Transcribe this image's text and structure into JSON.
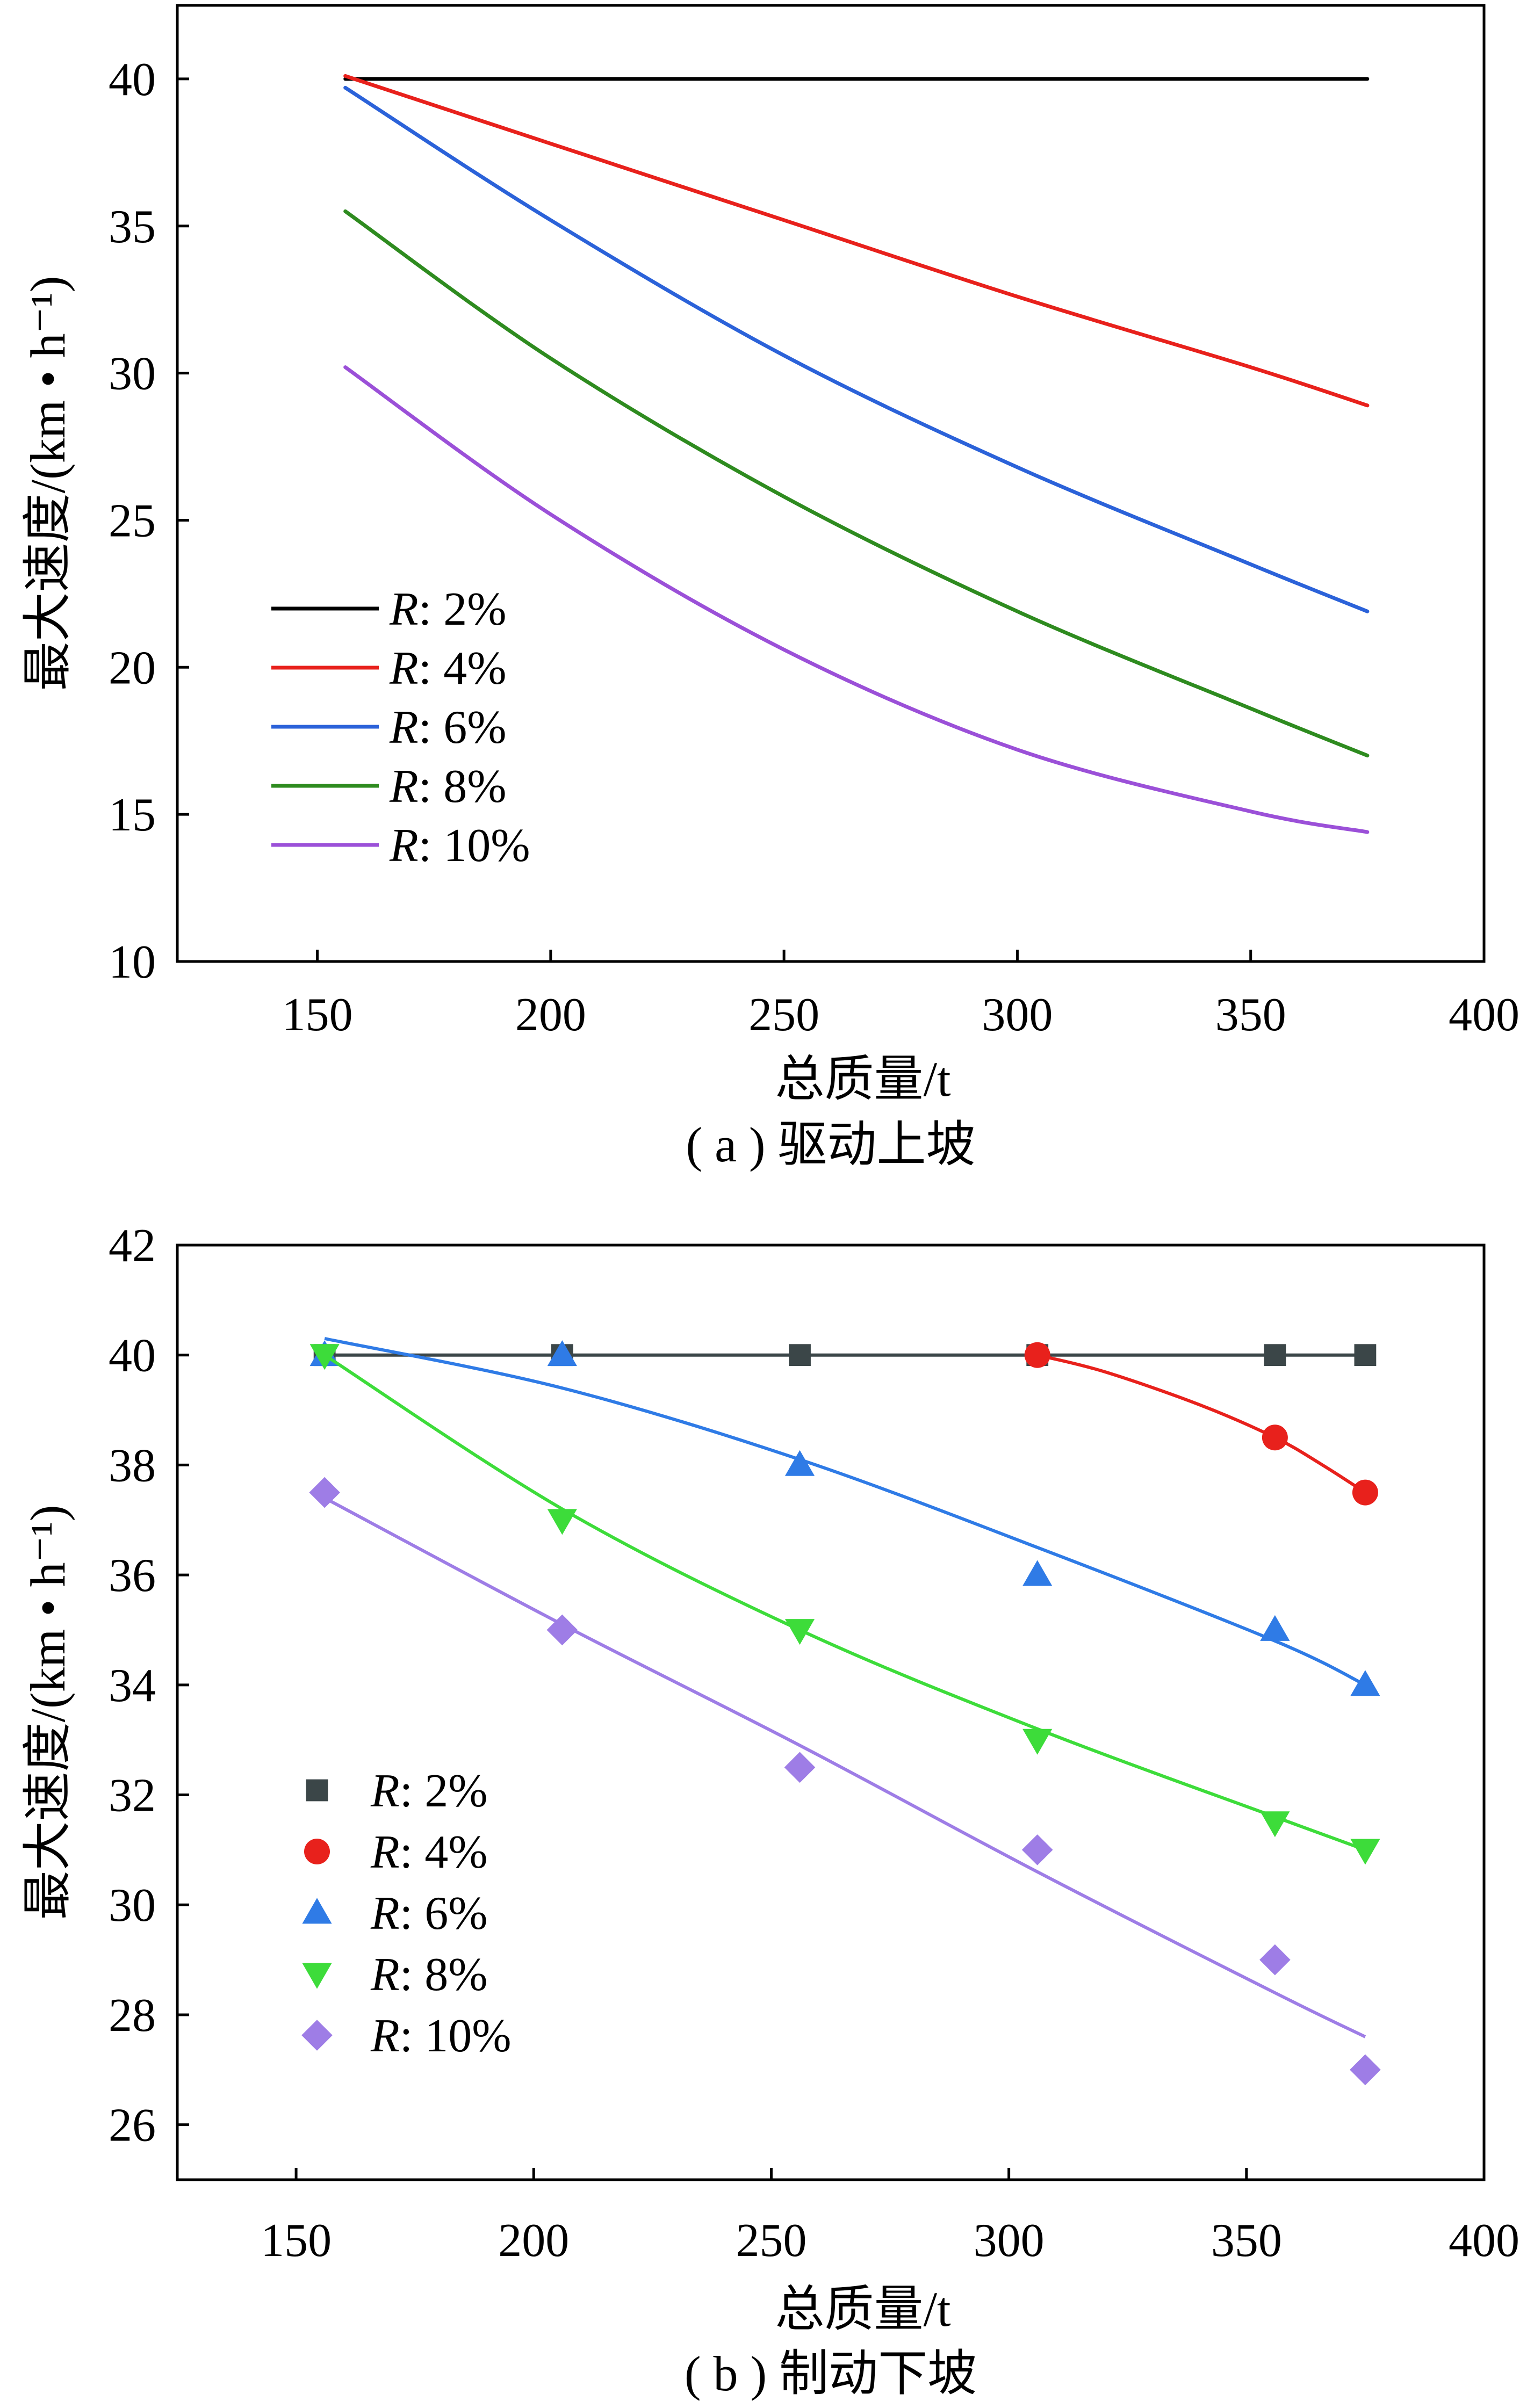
{
  "charts": [
    {
      "id": "a",
      "caption": "( a ) 驱动上坡",
      "chart_data": {
        "type": "line",
        "xlabel": "总质量/t",
        "ylabel": "最大速度/(km • h⁻¹)",
        "xlim": [
          120,
          400
        ],
        "ylim": [
          10,
          42.5
        ],
        "xticks": [
          150,
          200,
          250,
          300,
          350,
          400
        ],
        "yticks": [
          10,
          15,
          20,
          25,
          30,
          35,
          40
        ],
        "legend_position": "lower-left",
        "series": [
          {
            "name": "R: 2%",
            "name_italic": "R",
            "name_rest": ": 2%",
            "color": "#000000",
            "x": [
              156,
              200,
              250,
              300,
              350,
              375
            ],
            "y": [
              40,
              40,
              40,
              40,
              40,
              40
            ]
          },
          {
            "name": "R: 4%",
            "name_italic": "R",
            "name_rest": ": 4%",
            "color": "#e8211c",
            "x": [
              156,
              200,
              250,
              300,
              350,
              375
            ],
            "y": [
              40.1,
              37.8,
              35.2,
              32.6,
              30.2,
              28.9
            ]
          },
          {
            "name": "R: 6%",
            "name_italic": "R",
            "name_rest": ": 6%",
            "color": "#2b62d9",
            "x": [
              156,
              200,
              250,
              300,
              350,
              375
            ],
            "y": [
              39.7,
              35.2,
              30.6,
              26.8,
              23.5,
              21.9
            ]
          },
          {
            "name": "R: 8%",
            "name_italic": "R",
            "name_rest": ": 8%",
            "color": "#2e8b1f",
            "x": [
              156,
              200,
              250,
              300,
              350,
              375
            ],
            "y": [
              35.5,
              30.5,
              25.8,
              21.9,
              18.6,
              17.0
            ]
          },
          {
            "name": "R: 10%",
            "name_italic": "R",
            "name_rest": ": 10%",
            "color": "#9b50d8",
            "x": [
              156,
              200,
              250,
              300,
              350,
              375
            ],
            "y": [
              30.2,
              25.2,
              20.6,
              17.2,
              15.1,
              14.4
            ]
          }
        ]
      }
    },
    {
      "id": "b",
      "caption": "( b ) 制动下坡",
      "chart_data": {
        "type": "scatter",
        "xlabel": "总质量/t",
        "ylabel": "最大速度/(km • h⁻¹)",
        "xlim": [
          125,
          400
        ],
        "ylim": [
          25,
          42
        ],
        "xticks": [
          150,
          200,
          250,
          300,
          350,
          400
        ],
        "yticks": [
          26,
          28,
          30,
          32,
          34,
          36,
          38,
          40,
          42
        ],
        "legend_position": "lower-left",
        "series": [
          {
            "name": "R: 2%",
            "name_italic": "R",
            "name_rest": ": 2%",
            "color": "#3b4648",
            "marker": "square",
            "points_x": [
              156,
              206,
              256,
              306,
              356,
              375
            ],
            "points_y": [
              40,
              40,
              40,
              40,
              40,
              40
            ],
            "fit_x": [
              156,
              206,
              256,
              306,
              356,
              375
            ],
            "fit_y": [
              40,
              40,
              40,
              40,
              40,
              40
            ]
          },
          {
            "name": "R: 4%",
            "name_italic": "R",
            "name_rest": ": 4%",
            "color": "#e8211c",
            "marker": "circle",
            "points_x": [
              306,
              356,
              375
            ],
            "points_y": [
              40,
              38.5,
              37.5
            ],
            "fit_x": [
              306,
              320,
              340,
              356,
              366,
              375
            ],
            "fit_y": [
              40,
              39.7,
              39.1,
              38.5,
              38.0,
              37.5
            ]
          },
          {
            "name": "R: 6%",
            "name_italic": "R",
            "name_rest": ": 6%",
            "color": "#2f7be6",
            "marker": "triangle-up",
            "points_x": [
              156,
              206,
              256,
              306,
              356,
              375
            ],
            "points_y": [
              40,
              40,
              38,
              36,
              35,
              34
            ],
            "fit_x": [
              156,
              206,
              256,
              306,
              356,
              375
            ],
            "fit_y": [
              40.3,
              39.4,
              38.1,
              36.5,
              34.8,
              34.0
            ]
          },
          {
            "name": "R: 8%",
            "name_italic": "R",
            "name_rest": ": 8%",
            "color": "#3ddc3a",
            "marker": "triangle-down",
            "points_x": [
              156,
              206,
              256,
              306,
              356,
              375
            ],
            "points_y": [
              40,
              37,
              35,
              33,
              31.5,
              31
            ],
            "fit_x": [
              156,
              206,
              256,
              306,
              356,
              375
            ],
            "fit_y": [
              40,
              37.2,
              35.0,
              33.2,
              31.6,
              31.0
            ]
          },
          {
            "name": "R: 10%",
            "name_italic": "R",
            "name_rest": ": 10%",
            "color": "#9e7de6",
            "marker": "diamond",
            "points_x": [
              156,
              206,
              256,
              306,
              356,
              375
            ],
            "points_y": [
              37.5,
              35,
              32.5,
              31,
              29,
              27
            ],
            "fit_x": [
              156,
              206,
              256,
              306,
              356,
              375
            ],
            "fit_y": [
              37.4,
              35.1,
              32.9,
              30.6,
              28.4,
              27.6
            ]
          }
        ]
      }
    }
  ]
}
